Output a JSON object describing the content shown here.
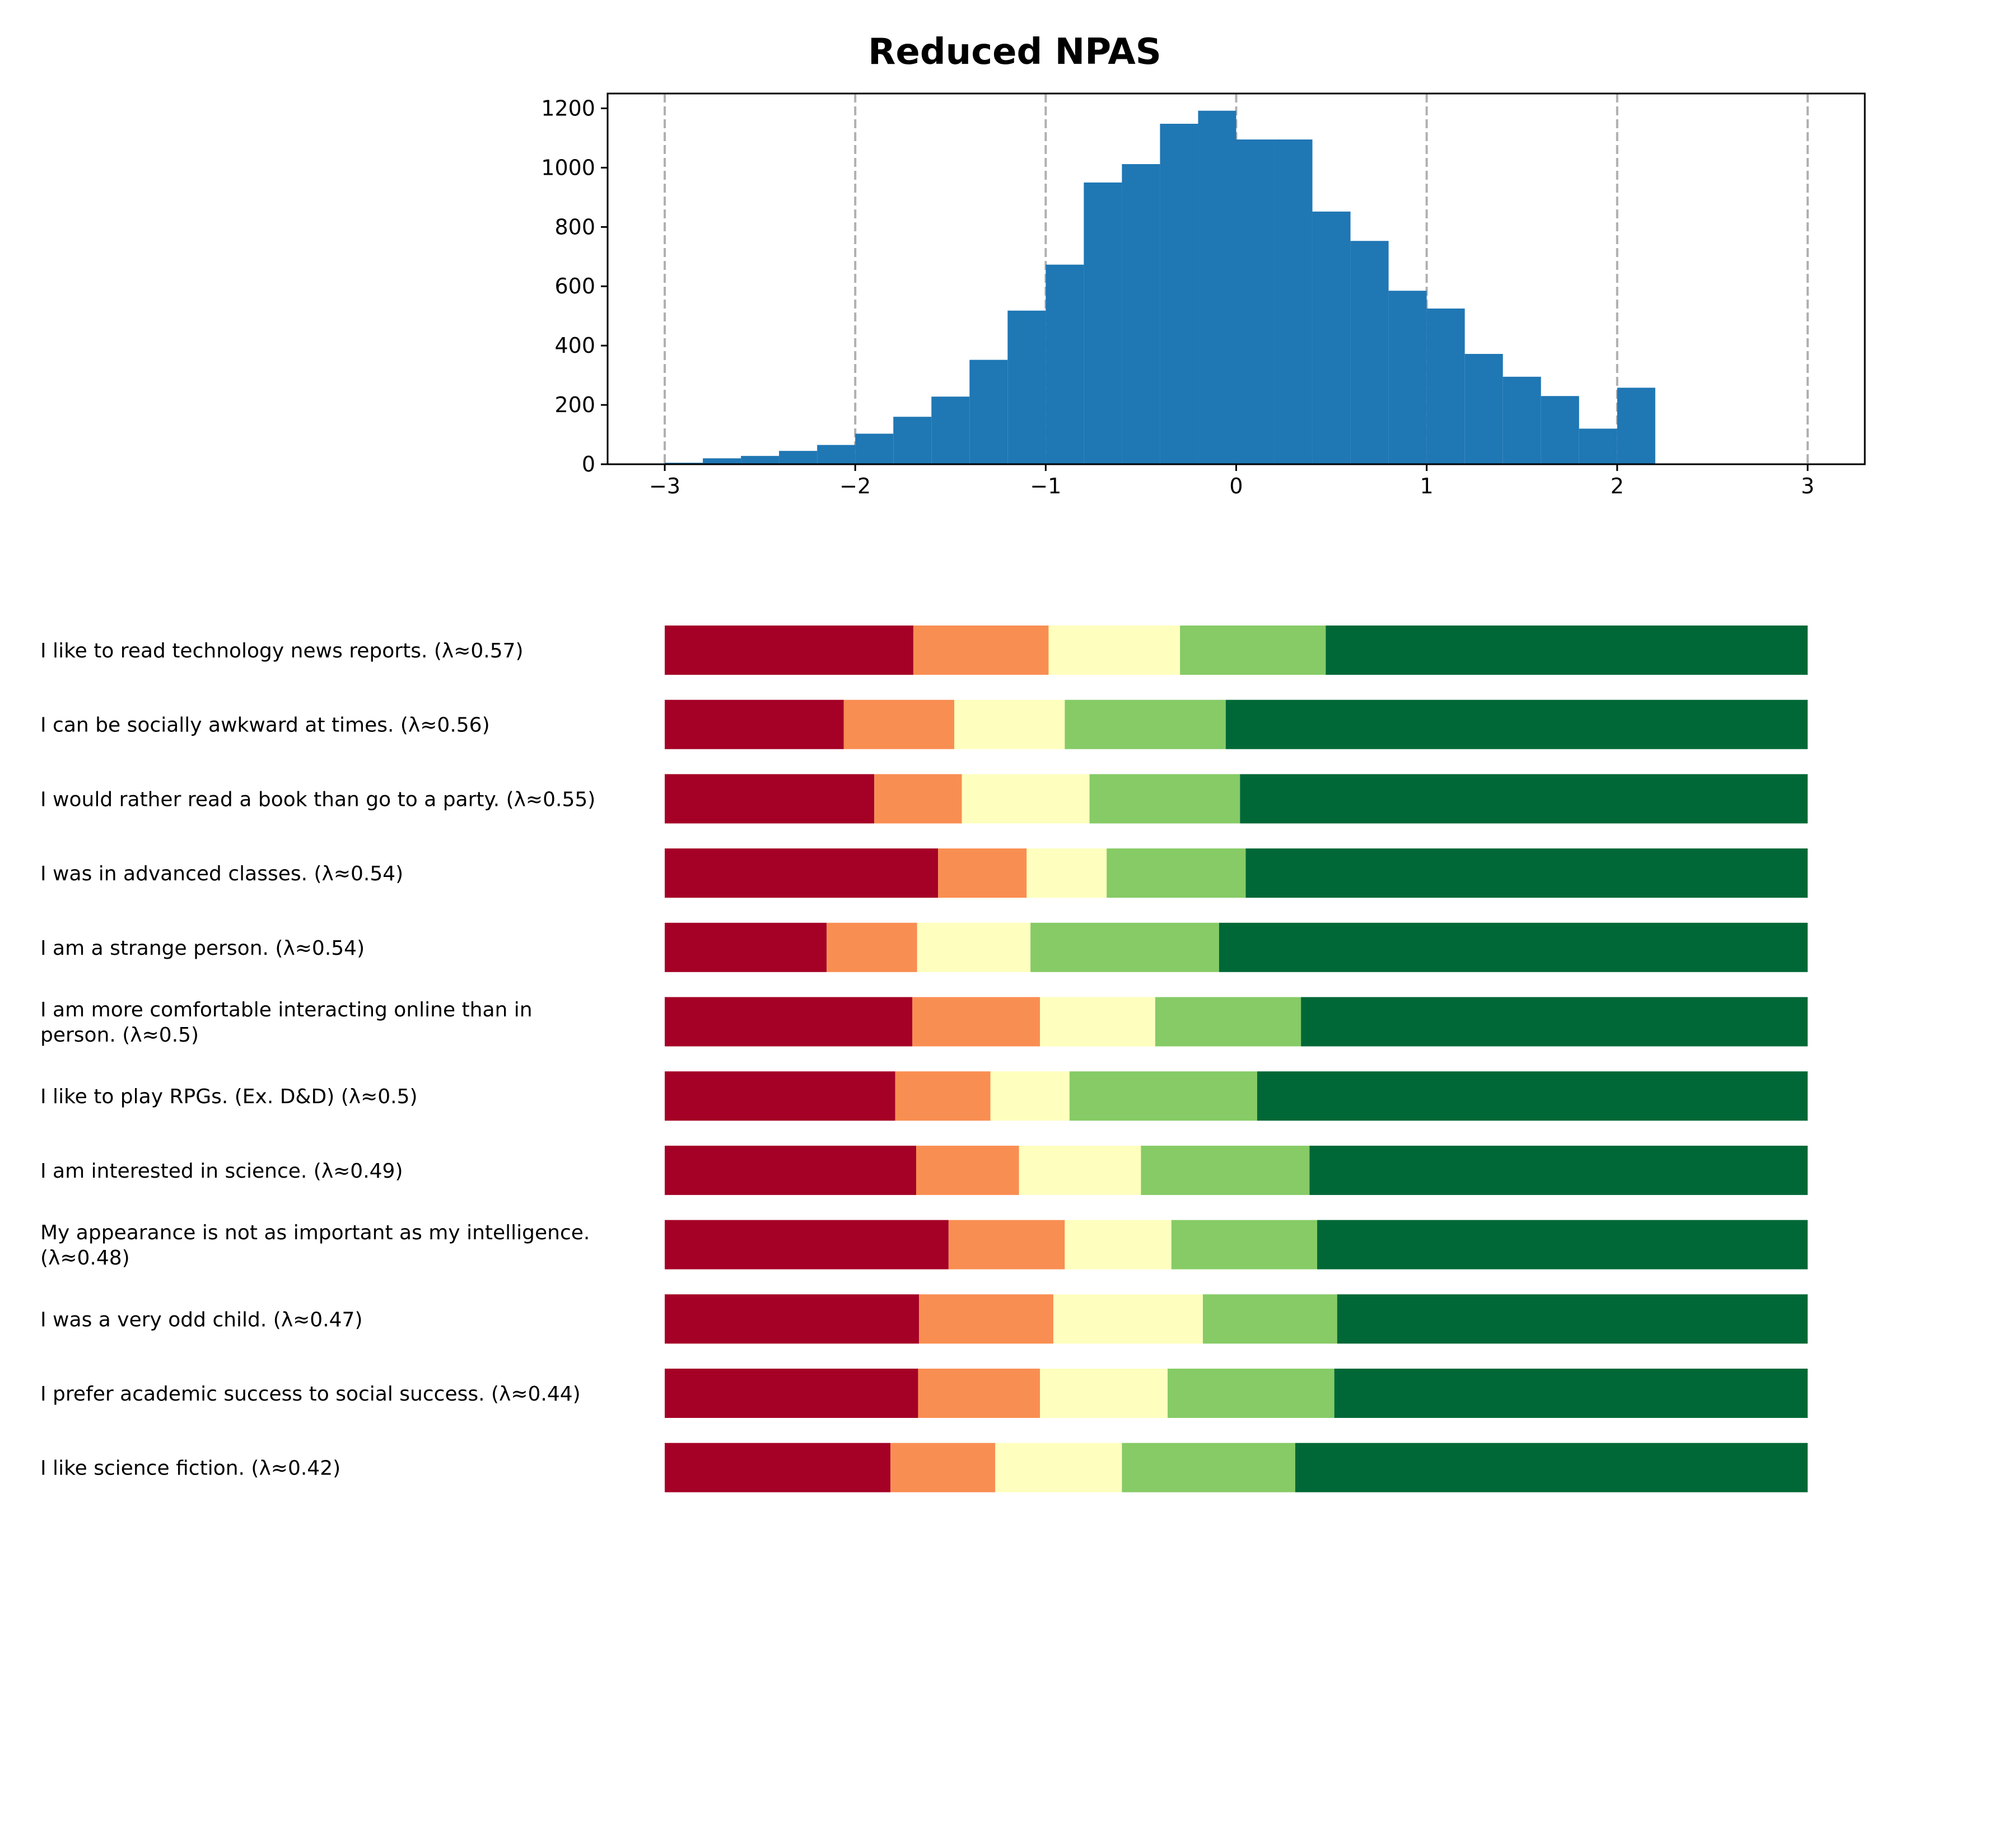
{
  "chart_data": [
    {
      "type": "bar",
      "subtype": "histogram",
      "title": "Reduced NPAS",
      "xlabel": "",
      "ylabel": "",
      "xlim": [
        -3.3,
        3.3
      ],
      "ylim": [
        0,
        1250
      ],
      "xticks": [
        "−3",
        "−2",
        "−1",
        "0",
        "1",
        "2",
        "3"
      ],
      "yticks": [
        "0",
        "200",
        "400",
        "600",
        "800",
        "1000",
        "1200"
      ],
      "vlines": [
        -3,
        -2,
        -1,
        0,
        1,
        2,
        3
      ],
      "vline_style": "dashed gray",
      "bin_width": 0.2,
      "bins": [
        {
          "x0": -3.0,
          "x1": -2.8,
          "count": 5
        },
        {
          "x0": -2.8,
          "x1": -2.6,
          "count": 20
        },
        {
          "x0": -2.6,
          "x1": -2.4,
          "count": 28
        },
        {
          "x0": -2.4,
          "x1": -2.2,
          "count": 45
        },
        {
          "x0": -2.2,
          "x1": -2.0,
          "count": 65
        },
        {
          "x0": -2.0,
          "x1": -1.8,
          "count": 103
        },
        {
          "x0": -1.8,
          "x1": -1.6,
          "count": 160
        },
        {
          "x0": -1.6,
          "x1": -1.4,
          "count": 228
        },
        {
          "x0": -1.4,
          "x1": -1.2,
          "count": 352
        },
        {
          "x0": -1.2,
          "x1": -1.0,
          "count": 518
        },
        {
          "x0": -1.0,
          "x1": -0.8,
          "count": 673
        },
        {
          "x0": -0.8,
          "x1": -0.6,
          "count": 950
        },
        {
          "x0": -0.6,
          "x1": -0.4,
          "count": 1012
        },
        {
          "x0": -0.4,
          "x1": -0.2,
          "count": 1148
        },
        {
          "x0": -0.2,
          "x1": 0.0,
          "count": 1192
        },
        {
          "x0": 0.0,
          "x1": 0.2,
          "count": 1095
        },
        {
          "x0": 0.2,
          "x1": 0.4,
          "count": 1095
        },
        {
          "x0": 0.4,
          "x1": 0.6,
          "count": 852
        },
        {
          "x0": 0.6,
          "x1": 0.8,
          "count": 753
        },
        {
          "x0": 0.8,
          "x1": 1.0,
          "count": 585
        },
        {
          "x0": 1.0,
          "x1": 1.2,
          "count": 525
        },
        {
          "x0": 1.2,
          "x1": 1.4,
          "count": 372
        },
        {
          "x0": 1.4,
          "x1": 1.6,
          "count": 295
        },
        {
          "x0": 1.6,
          "x1": 1.8,
          "count": 230
        },
        {
          "x0": 1.8,
          "x1": 2.0,
          "count": 120
        },
        {
          "x0": 2.0,
          "x1": 2.2,
          "count": 258
        }
      ],
      "color": "#1f77b4"
    },
    {
      "type": "bar",
      "subtype": "stacked-horizontal-100",
      "xlim": [
        -3,
        3
      ],
      "colors": [
        "#a50026",
        "#f98e52",
        "#feffbe",
        "#86cb66",
        "#006837"
      ],
      "categories": [
        "I like to read technology news reports. (λ≈0.57)",
        "I can be socially awkward at times. (λ≈0.56)",
        "I would rather read a book than go to a party. (λ≈0.55)",
        "I was in advanced classes. (λ≈0.54)",
        "I am a strange person. (λ≈0.54)",
        "I am more comfortable interacting online than in\nperson. (λ≈0.5)",
        "I like to play RPGs. (Ex. D&D) (λ≈0.5)",
        "I am interested in science. (λ≈0.49)",
        "My appearance is not as important as my intelligence.\n(λ≈0.48)",
        "I was a very odd child. (λ≈0.47)",
        "I prefer academic success to social success. (λ≈0.44)",
        "I like science fiction. (λ≈0.42)"
      ],
      "boundaries": [
        [
          -1.695,
          -0.985,
          -0.295,
          0.47
        ],
        [
          -2.06,
          -1.48,
          -0.9,
          -0.055
        ],
        [
          -1.9,
          -1.44,
          -0.77,
          0.02
        ],
        [
          -1.565,
          -1.1,
          -0.68,
          0.05
        ],
        [
          -2.15,
          -1.675,
          -1.08,
          -0.09
        ],
        [
          -1.7,
          -1.03,
          -0.425,
          0.34
        ],
        [
          -1.79,
          -1.29,
          -0.875,
          0.11
        ],
        [
          -1.68,
          -1.14,
          -0.5,
          0.385
        ],
        [
          -1.51,
          -0.9,
          -0.34,
          0.425
        ],
        [
          -1.665,
          -0.96,
          -0.175,
          0.53
        ],
        [
          -1.67,
          -1.03,
          -0.36,
          0.515
        ],
        [
          -1.815,
          -1.265,
          -0.6,
          0.31
        ]
      ]
    }
  ]
}
